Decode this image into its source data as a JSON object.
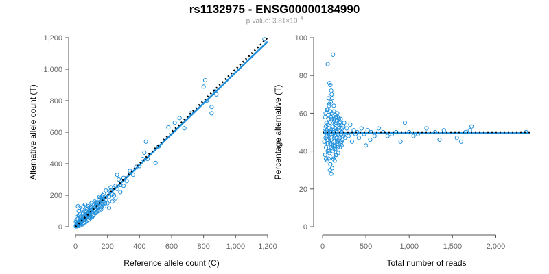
{
  "title": "rs1132975 - ENSG00000184990",
  "subtitle": {
    "prefix": "p-value: 3.81×10",
    "exponent": "−4"
  },
  "colors": {
    "points": "#1f8fdb",
    "fit": "#1f8fdb",
    "reference": "#000000",
    "axis": "#555555",
    "tick_text": "#666666"
  },
  "chart_data": [
    {
      "type": "scatter",
      "title": "",
      "xlabel": "Reference allele count (C)",
      "ylabel": "Alternative allele count (T)",
      "xlim": [
        0,
        1200
      ],
      "ylim": [
        0,
        1200
      ],
      "xticks": [
        0,
        200,
        400,
        600,
        800,
        1000,
        1200
      ],
      "xtick_labels": [
        "0",
        "200",
        "400",
        "600",
        "800",
        "1,000",
        "1,200"
      ],
      "yticks": [
        0,
        200,
        400,
        600,
        800,
        1000,
        1200
      ],
      "ytick_labels": [
        "0",
        "200",
        "400",
        "600",
        "800",
        "1,000",
        "1,200"
      ],
      "grid": false,
      "reference_line": {
        "style": "dotted",
        "x": [
          0,
          1200
        ],
        "y": [
          0,
          1200
        ]
      },
      "fit_line": {
        "style": "solid",
        "x": [
          0,
          1200
        ],
        "y": [
          0,
          1175
        ]
      },
      "points": [
        [
          5,
          10
        ],
        [
          8,
          5
        ],
        [
          10,
          18
        ],
        [
          12,
          8
        ],
        [
          15,
          25
        ],
        [
          18,
          12
        ],
        [
          20,
          30
        ],
        [
          22,
          15
        ],
        [
          25,
          20
        ],
        [
          28,
          35
        ],
        [
          30,
          22
        ],
        [
          32,
          40
        ],
        [
          35,
          28
        ],
        [
          38,
          45
        ],
        [
          40,
          32
        ],
        [
          42,
          50
        ],
        [
          45,
          38
        ],
        [
          48,
          55
        ],
        [
          50,
          42
        ],
        [
          52,
          60
        ],
        [
          55,
          48
        ],
        [
          58,
          62
        ],
        [
          60,
          50
        ],
        [
          62,
          70
        ],
        [
          65,
          55
        ],
        [
          68,
          72
        ],
        [
          70,
          60
        ],
        [
          72,
          80
        ],
        [
          75,
          65
        ],
        [
          78,
          85
        ],
        [
          80,
          70
        ],
        [
          82,
          90
        ],
        [
          85,
          78
        ],
        [
          88,
          95
        ],
        [
          90,
          82
        ],
        [
          95,
          100
        ],
        [
          98,
          88
        ],
        [
          100,
          105
        ],
        [
          105,
          92
        ],
        [
          110,
          115
        ],
        [
          112,
          100
        ],
        [
          115,
          120
        ],
        [
          120,
          108
        ],
        [
          125,
          130
        ],
        [
          130,
          115
        ],
        [
          135,
          140
        ],
        [
          140,
          125
        ],
        [
          145,
          150
        ],
        [
          150,
          135
        ],
        [
          155,
          160
        ],
        [
          160,
          145
        ],
        [
          170,
          175
        ],
        [
          175,
          160
        ],
        [
          180,
          185
        ],
        [
          190,
          170
        ],
        [
          200,
          210
        ],
        [
          210,
          190
        ],
        [
          220,
          230
        ],
        [
          230,
          205
        ],
        [
          250,
          260
        ],
        [
          260,
          240
        ],
        [
          270,
          300
        ],
        [
          280,
          265
        ],
        [
          300,
          310
        ],
        [
          320,
          290
        ],
        [
          340,
          355
        ],
        [
          360,
          330
        ],
        [
          380,
          380
        ],
        [
          400,
          385
        ],
        [
          420,
          430
        ],
        [
          430,
          470
        ],
        [
          440,
          540
        ],
        [
          450,
          430
        ],
        [
          500,
          405
        ],
        [
          520,
          510
        ],
        [
          580,
          630
        ],
        [
          620,
          660
        ],
        [
          650,
          690
        ],
        [
          680,
          625
        ],
        [
          720,
          720
        ],
        [
          800,
          890
        ],
        [
          810,
          930
        ],
        [
          820,
          800
        ],
        [
          850,
          720
        ],
        [
          850,
          760
        ],
        [
          870,
          860
        ],
        [
          880,
          840
        ],
        [
          1180,
          1190
        ],
        [
          15,
          130
        ],
        [
          20,
          100
        ],
        [
          25,
          120
        ],
        [
          30,
          80
        ],
        [
          40,
          110
        ],
        [
          50,
          130
        ],
        [
          60,
          140
        ],
        [
          70,
          110
        ],
        [
          80,
          130
        ],
        [
          90,
          60
        ],
        [
          100,
          150
        ],
        [
          110,
          70
        ],
        [
          120,
          160
        ],
        [
          130,
          90
        ],
        [
          140,
          100
        ],
        [
          150,
          190
        ],
        [
          160,
          110
        ],
        [
          170,
          200
        ],
        [
          180,
          130
        ],
        [
          190,
          230
        ],
        [
          200,
          150
        ],
        [
          210,
          120
        ],
        [
          220,
          250
        ],
        [
          230,
          160
        ],
        [
          240,
          200
        ],
        [
          250,
          180
        ],
        [
          260,
          330
        ],
        [
          280,
          220
        ],
        [
          300,
          260
        ],
        [
          2,
          2
        ],
        [
          3,
          30
        ],
        [
          6,
          40
        ],
        [
          9,
          60
        ],
        [
          11,
          3
        ],
        [
          14,
          50
        ],
        [
          16,
          6
        ],
        [
          19,
          70
        ],
        [
          24,
          5
        ],
        [
          27,
          55
        ],
        [
          33,
          10
        ],
        [
          36,
          65
        ],
        [
          44,
          15
        ],
        [
          47,
          85
        ],
        [
          53,
          25
        ],
        [
          57,
          95
        ],
        [
          63,
          30
        ],
        [
          67,
          100
        ],
        [
          73,
          40
        ],
        [
          77,
          115
        ],
        [
          83,
          45
        ],
        [
          87,
          120
        ],
        [
          93,
          55
        ],
        [
          97,
          125
        ],
        [
          103,
          60
        ],
        [
          107,
          140
        ],
        [
          113,
          75
        ],
        [
          117,
          145
        ],
        [
          123,
          85
        ],
        [
          127,
          150
        ],
        [
          133,
          95
        ],
        [
          137,
          155
        ],
        [
          143,
          105
        ],
        [
          147,
          170
        ],
        [
          153,
          115
        ],
        [
          157,
          185
        ],
        [
          163,
          125
        ],
        [
          167,
          190
        ],
        [
          173,
          145
        ],
        [
          177,
          210
        ],
        [
          185,
          150
        ]
      ]
    },
    {
      "type": "scatter",
      "title": "",
      "xlabel": "Total number of reads",
      "ylabel": "Percentage alternative (T)",
      "xlim": [
        0,
        2400
      ],
      "ylim": [
        0,
        100
      ],
      "xticks": [
        0,
        500,
        1000,
        1500,
        2000
      ],
      "xtick_labels": [
        "0",
        "500",
        "1,000",
        "1,500",
        "2,000"
      ],
      "yticks": [
        0,
        20,
        40,
        60,
        80,
        100
      ],
      "ytick_labels": [
        "0",
        "20",
        "40",
        "60",
        "80",
        "100"
      ],
      "grid": false,
      "reference_line": {
        "style": "dotted",
        "x": [
          0,
          2400
        ],
        "y": [
          50,
          50
        ]
      },
      "fit_line": {
        "style": "solid",
        "x": [
          0,
          2400
        ],
        "y": [
          49.5,
          49.5
        ]
      },
      "points": [
        [
          20,
          45
        ],
        [
          25,
          52
        ],
        [
          30,
          38
        ],
        [
          35,
          60
        ],
        [
          40,
          42
        ],
        [
          45,
          55
        ],
        [
          50,
          48
        ],
        [
          55,
          35
        ],
        [
          60,
          62
        ],
        [
          65,
          44
        ],
        [
          70,
          57
        ],
        [
          75,
          40
        ],
        [
          80,
          65
        ],
        [
          85,
          50
        ],
        [
          90,
          33
        ],
        [
          95,
          58
        ],
        [
          100,
          46
        ],
        [
          105,
          70
        ],
        [
          110,
          41
        ],
        [
          115,
          53
        ],
        [
          120,
          49
        ],
        [
          125,
          36
        ],
        [
          130,
          61
        ],
        [
          135,
          47
        ],
        [
          140,
          54
        ],
        [
          145,
          43
        ],
        [
          150,
          59
        ],
        [
          155,
          38
        ],
        [
          160,
          51
        ],
        [
          165,
          45
        ],
        [
          170,
          56
        ],
        [
          175,
          42
        ],
        [
          180,
          52
        ],
        [
          190,
          48
        ],
        [
          200,
          55
        ],
        [
          210,
          44
        ],
        [
          220,
          50
        ],
        [
          230,
          46
        ],
        [
          240,
          53
        ],
        [
          250,
          49
        ],
        [
          260,
          47
        ],
        [
          280,
          52
        ],
        [
          300,
          48
        ],
        [
          320,
          54
        ],
        [
          340,
          45
        ],
        [
          360,
          51
        ],
        [
          380,
          49
        ],
        [
          400,
          50
        ],
        [
          420,
          47
        ],
        [
          450,
          52
        ],
        [
          480,
          49
        ],
        [
          500,
          43
        ],
        [
          520,
          51
        ],
        [
          550,
          46
        ],
        [
          560,
          50
        ],
        [
          600,
          48
        ],
        [
          650,
          52
        ],
        [
          700,
          50
        ],
        [
          750,
          48
        ],
        [
          800,
          49
        ],
        [
          850,
          50
        ],
        [
          900,
          45
        ],
        [
          950,
          55
        ],
        [
          1000,
          50
        ],
        [
          1050,
          48
        ],
        [
          1100,
          49
        ],
        [
          1200,
          52
        ],
        [
          1300,
          50
        ],
        [
          1350,
          46
        ],
        [
          1400,
          51
        ],
        [
          1550,
          47
        ],
        [
          1600,
          45
        ],
        [
          1650,
          50
        ],
        [
          1700,
          51
        ],
        [
          1720,
          53
        ],
        [
          2350,
          50
        ],
        [
          60,
          86
        ],
        [
          120,
          91
        ],
        [
          80,
          76
        ],
        [
          90,
          75
        ],
        [
          100,
          72
        ],
        [
          70,
          68
        ],
        [
          110,
          68
        ],
        [
          95,
          66
        ],
        [
          130,
          64
        ],
        [
          75,
          64
        ],
        [
          85,
          30
        ],
        [
          100,
          28
        ],
        [
          90,
          33
        ],
        [
          110,
          31
        ],
        [
          70,
          36
        ],
        [
          120,
          37
        ],
        [
          140,
          35
        ],
        [
          60,
          40
        ],
        [
          160,
          38
        ],
        [
          180,
          39
        ],
        [
          30,
          50
        ],
        [
          35,
          47
        ],
        [
          40,
          53
        ],
        [
          45,
          49
        ],
        [
          50,
          51
        ],
        [
          55,
          46
        ],
        [
          60,
          54
        ],
        [
          65,
          50
        ],
        [
          70,
          48
        ],
        [
          75,
          52
        ],
        [
          80,
          47
        ],
        [
          85,
          55
        ],
        [
          90,
          44
        ],
        [
          95,
          51
        ],
        [
          100,
          49
        ],
        [
          105,
          57
        ],
        [
          110,
          45
        ],
        [
          115,
          50
        ],
        [
          120,
          53
        ],
        [
          125,
          43
        ],
        [
          130,
          51
        ],
        [
          135,
          56
        ],
        [
          140,
          48
        ],
        [
          145,
          41
        ],
        [
          150,
          52
        ],
        [
          155,
          55
        ],
        [
          160,
          47
        ],
        [
          165,
          50
        ],
        [
          170,
          44
        ],
        [
          175,
          58
        ],
        [
          180,
          49
        ],
        [
          185,
          46
        ],
        [
          190,
          54
        ],
        [
          195,
          51
        ],
        [
          200,
          47
        ],
        [
          210,
          57
        ],
        [
          220,
          45
        ],
        [
          230,
          52
        ],
        [
          240,
          48
        ],
        [
          250,
          55
        ],
        [
          30,
          58
        ],
        [
          40,
          36
        ],
        [
          50,
          62
        ],
        [
          60,
          44
        ],
        [
          70,
          59
        ],
        [
          80,
          39
        ],
        [
          90,
          61
        ],
        [
          100,
          42
        ],
        [
          110,
          60
        ],
        [
          120,
          40
        ],
        [
          130,
          57
        ],
        [
          140,
          43
        ],
        [
          150,
          58
        ],
        [
          160,
          41
        ],
        [
          170,
          60
        ],
        [
          180,
          45
        ],
        [
          190,
          57
        ],
        [
          200,
          42
        ],
        [
          210,
          54
        ],
        [
          220,
          43
        ]
      ]
    }
  ]
}
